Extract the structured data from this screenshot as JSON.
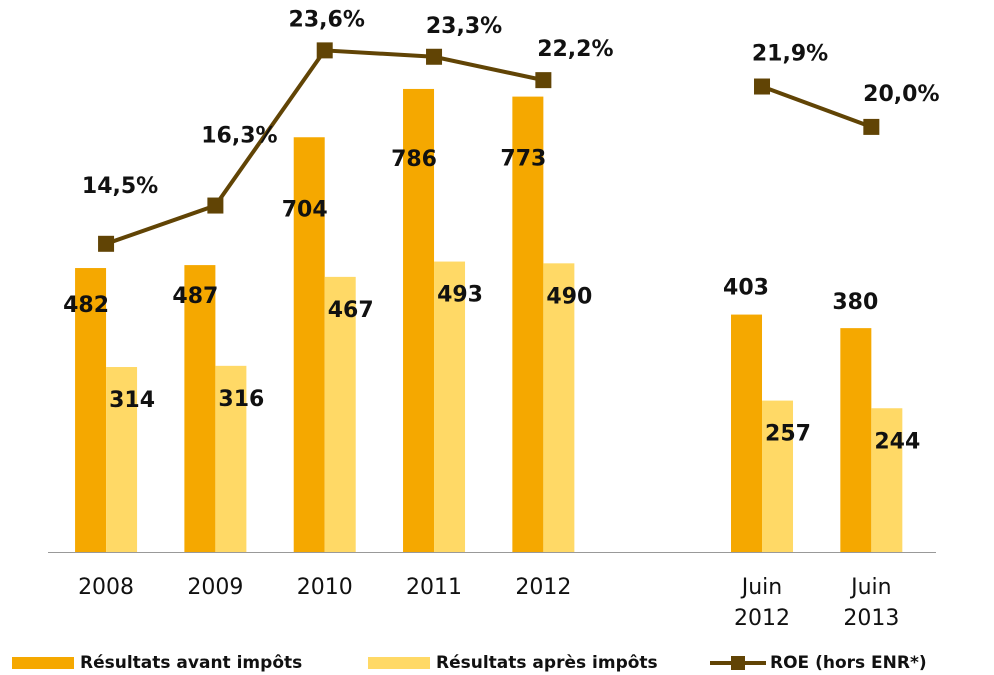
{
  "chart_data": {
    "type": "bar",
    "categories": [
      "2008",
      "2009",
      "2010",
      "2011",
      "2012",
      null,
      "Juin 2012",
      "Juin 2013"
    ],
    "series": [
      {
        "name": "Résultats avant impôts",
        "color": "#f5a800",
        "values": [
          482,
          487,
          704,
          786,
          773,
          null,
          403,
          380
        ]
      },
      {
        "name": "Résultats après impôts",
        "color": "#ffd966",
        "values": [
          314,
          316,
          467,
          493,
          490,
          null,
          257,
          244
        ]
      },
      {
        "name": "ROE (hors ENR*)",
        "type": "line",
        "axis": "y2",
        "color": "#614405",
        "values": [
          14.5,
          16.3,
          23.6,
          23.3,
          22.2,
          null,
          21.9,
          20.0
        ],
        "value_labels": [
          "14,5%",
          "16,3%",
          "23,6%",
          "23,3%",
          "22,2%",
          null,
          "21,9%",
          "20,0%"
        ]
      }
    ],
    "ylim": [
      0,
      920
    ],
    "y2lim": [
      0,
      25.5
    ],
    "legend": "bottom"
  }
}
